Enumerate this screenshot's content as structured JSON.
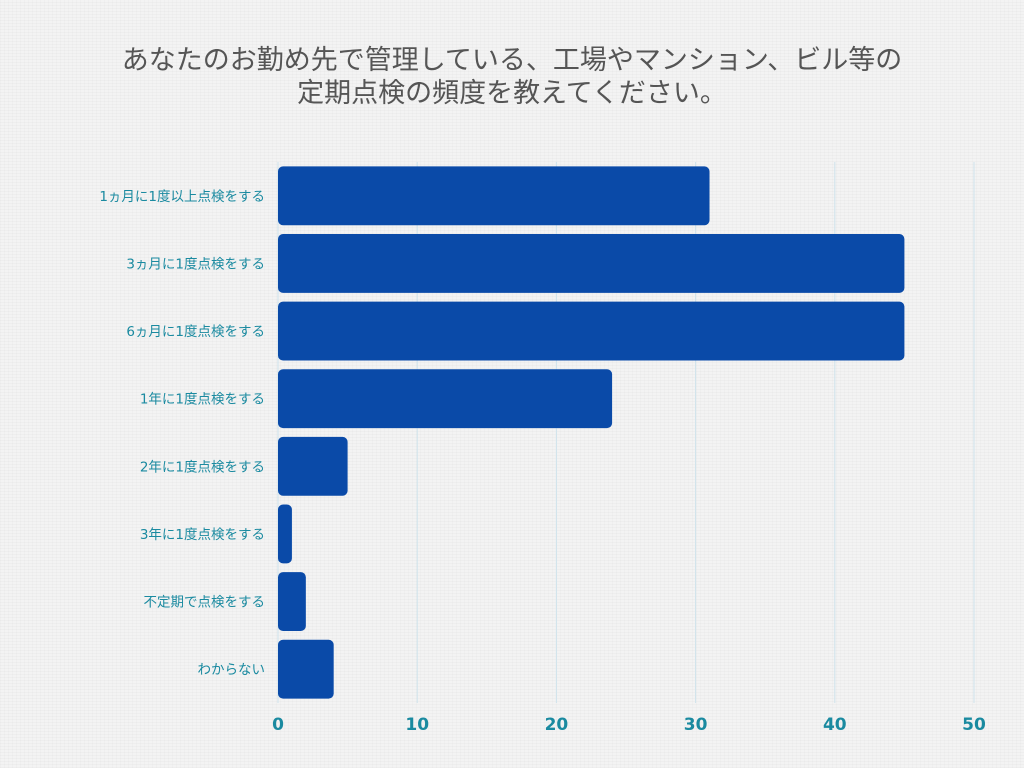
{
  "chart_data": {
    "type": "bar",
    "orientation": "horizontal",
    "title_lines": [
      "あなたのお勤め先で管理している、工場やマンション、ビル等の",
      "定期点検の頻度を教えてください。"
    ],
    "categories": [
      "1ヵ月に1度以上点検をする",
      "3ヵ月に1度点検をする",
      "6ヵ月に1度点検をする",
      "1年に1度点検をする",
      "2年に1度点検をする",
      "3年に1度点検をする",
      "不定期で点検をする",
      "わからない"
    ],
    "values": [
      31,
      45,
      45,
      24,
      5,
      1,
      2,
      4
    ],
    "xlim": [
      0,
      50
    ],
    "xticks": [
      "0",
      "10",
      "20",
      "30",
      "40",
      "50"
    ],
    "grid": true,
    "bar_color": "#0a4aa8",
    "label_color": "#1a8aa0",
    "grid_color": "#cfe3ec"
  }
}
